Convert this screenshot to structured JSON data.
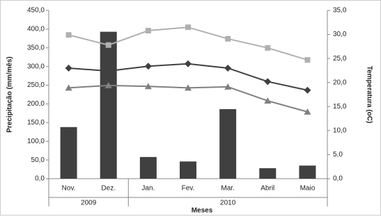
{
  "chart_data": {
    "type": "bar-line",
    "categories": [
      "Nov.",
      "Dez.",
      "Jan.",
      "Fev.",
      "Mar.",
      "Abril",
      "Maio"
    ],
    "groups": [
      {
        "label": "2009",
        "count": 2
      },
      {
        "label": "2010",
        "count": 5
      }
    ],
    "x_label": "Meses",
    "y_label": "Precipitação (mm/mês)",
    "y2_label": "Temperatura (oC)",
    "values": [
      138,
      393,
      58,
      46,
      186,
      28,
      35
    ],
    "color": "#404040",
    "series": [
      {
        "color": "#b0b0b0",
        "marker": "square",
        "axis": "y2",
        "values": [
          29.9,
          27.8,
          30.8,
          31.5,
          29.1,
          27.2,
          24.7
        ]
      },
      {
        "color": "#404040",
        "marker": "diamond",
        "axis": "y2",
        "values": [
          23.0,
          22.4,
          23.4,
          23.9,
          23.0,
          20.2,
          18.4
        ]
      },
      {
        "color": "#808080",
        "marker": "triangle",
        "axis": "y2",
        "values": [
          18.9,
          19.4,
          19.2,
          18.9,
          19.1,
          16.2,
          13.9
        ]
      }
    ],
    "ylim": [
      0,
      450
    ],
    "yticks": [
      {
        "value": 0,
        "label": "0,0"
      },
      {
        "value": 50,
        "label": "50,0"
      },
      {
        "value": 100,
        "label": "100,0"
      },
      {
        "value": 150,
        "label": "150,0"
      },
      {
        "value": 200,
        "label": "200,0"
      },
      {
        "value": 250,
        "label": "250,0"
      },
      {
        "value": 300,
        "label": "300,0"
      },
      {
        "value": 350,
        "label": "350,0"
      },
      {
        "value": 400,
        "label": "400,0"
      },
      {
        "value": 450,
        "label": "450,0"
      }
    ],
    "y2lim": [
      0,
      35
    ],
    "y2ticks": [
      {
        "value": 0,
        "label": "0,0"
      },
      {
        "value": 5,
        "label": "5,0"
      },
      {
        "value": 10,
        "label": "10,0"
      },
      {
        "value": 15,
        "label": "15,0"
      },
      {
        "value": 20,
        "label": "20,0"
      },
      {
        "value": 25,
        "label": "25,0"
      },
      {
        "value": 30,
        "label": "30,0"
      },
      {
        "value": 35,
        "label": "35,0"
      }
    ]
  }
}
